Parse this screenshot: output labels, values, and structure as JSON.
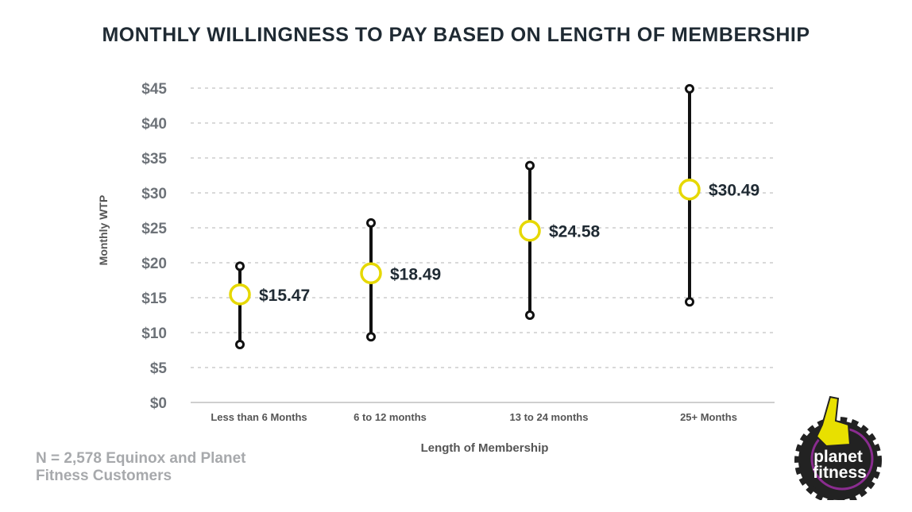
{
  "chart_data": {
    "type": "range-dot",
    "title": "MONTHLY WILLINGNESS TO PAY BASED ON LENGTH OF MEMBERSHIP",
    "xlabel": "Length of Membership",
    "ylabel": "Monthly WTP",
    "ylim": [
      0,
      45
    ],
    "yticks": [
      "$0",
      "$5",
      "$10",
      "$15",
      "$20",
      "$25",
      "$30",
      "$35",
      "$40",
      "$45"
    ],
    "ytick_values": [
      0,
      5,
      10,
      15,
      20,
      25,
      30,
      35,
      40,
      45
    ],
    "grid": true,
    "categories": [
      "Less than 6 Months",
      "6 to 12 months",
      "13 to 24 months",
      "25+ Months"
    ],
    "mean": [
      15.47,
      18.49,
      24.58,
      30.49
    ],
    "mean_labels": [
      "$15.47",
      "$18.49",
      "$24.58",
      "$30.49"
    ],
    "low": [
      8.3,
      9.4,
      12.5,
      14.4
    ],
    "high": [
      19.5,
      25.7,
      33.9,
      44.9
    ]
  },
  "footnote": "N = 2,578 Equinox and Planet Fitness Customers",
  "logo": {
    "text": "planet fitness"
  },
  "colors": {
    "marker": "#e6d800",
    "line": "#111111",
    "grid": "#d9d9d9",
    "text": "#1f2a33",
    "tick": "#6d7278"
  }
}
